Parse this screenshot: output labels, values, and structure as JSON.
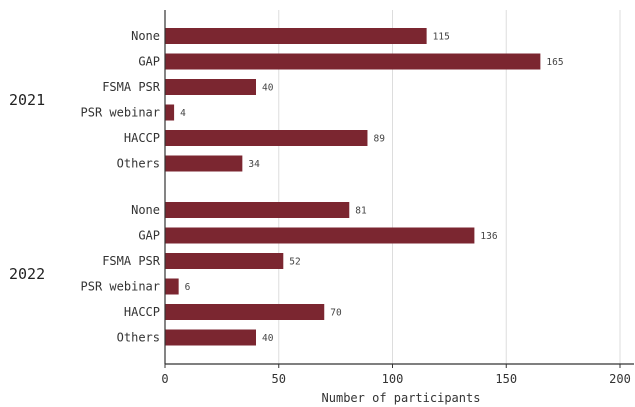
{
  "chart_data": {
    "type": "bar",
    "orientation": "horizontal",
    "xlabel": "Number of participants",
    "ylabel": "",
    "xlim": [
      0,
      200
    ],
    "xticks": [
      0,
      50,
      100,
      150,
      200
    ],
    "grid": "vertical",
    "bar_color": "#7b2630",
    "groups": [
      {
        "label": "2021",
        "categories": [
          "None",
          "GAP",
          "FSMA PSR",
          "PSR webinar",
          "HACCP",
          "Others"
        ],
        "values": [
          115,
          165,
          40,
          4,
          89,
          34
        ]
      },
      {
        "label": "2022",
        "categories": [
          "None",
          "GAP",
          "FSMA PSR",
          "PSR webinar",
          "HACCP",
          "Others"
        ],
        "values": [
          81,
          136,
          52,
          6,
          70,
          40
        ]
      }
    ]
  }
}
